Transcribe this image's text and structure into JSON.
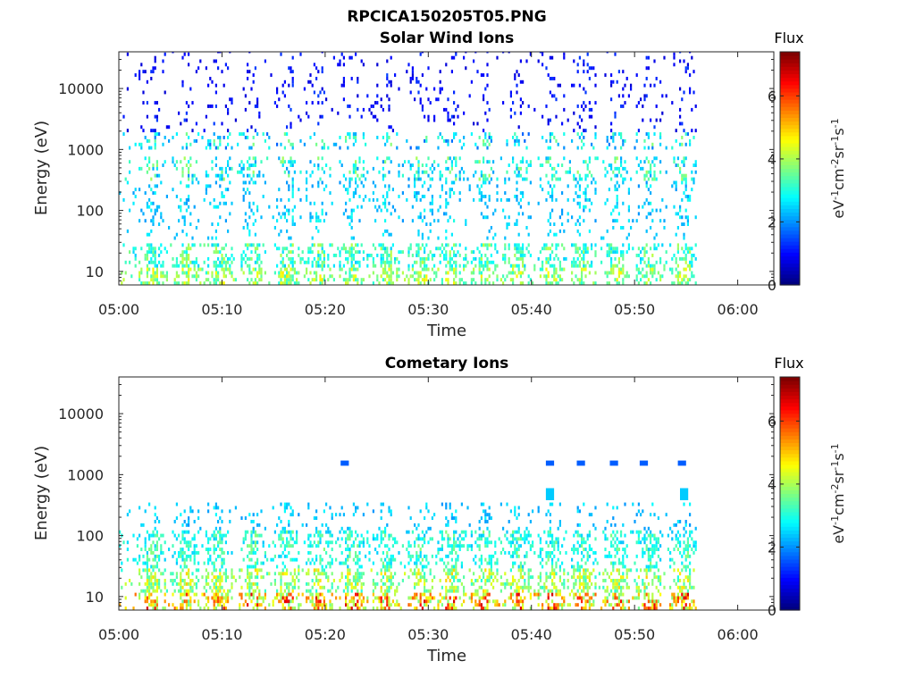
{
  "figure_title": "RPCICA150205T05.PNG",
  "chart_data": [
    {
      "type": "heatmap",
      "title": "Solar Wind Ions",
      "xlabel": "Time",
      "ylabel": "Energy (eV)",
      "x_ticks": [
        "05:00",
        "05:10",
        "05:20",
        "05:30",
        "05:40",
        "05:50",
        "06:00"
      ],
      "x_tick_minutes": [
        0,
        10,
        20,
        30,
        40,
        50,
        60
      ],
      "xlim_minutes": [
        0,
        63.5
      ],
      "data_extent_minutes": [
        0,
        56
      ],
      "y_scale": "log",
      "y_ticks": [
        "10",
        "100",
        "1000",
        "10000"
      ],
      "y_tick_values": [
        10,
        100,
        1000,
        10000
      ],
      "ylim": [
        6,
        40000
      ],
      "colorbar": {
        "title": "Flux",
        "label": "eV-1cm-2sr-1s-1",
        "label_display": [
          "eV",
          "-1",
          "cm",
          "-2",
          "sr",
          "-1",
          "s",
          "-1"
        ],
        "colormap": "jet",
        "range": [
          0,
          7.4
        ],
        "ticks": [
          "0",
          "2",
          "4",
          "6"
        ],
        "tick_values": [
          0,
          2,
          4,
          6
        ]
      },
      "burst_times_minutes": [
        3.1,
        6.4,
        9.6,
        12.9,
        16.2,
        19.4,
        22.5,
        25.8,
        29.2,
        32.1,
        35.4,
        38.6,
        41.8,
        45.0,
        48.2,
        51.3,
        54.7
      ],
      "bands": [
        {
          "emin": 6,
          "emax": 12,
          "level_min": 3.0,
          "level_max": 4.8,
          "density": 0.55
        },
        {
          "emin": 12,
          "emax": 30,
          "level_min": 2.4,
          "level_max": 4.2,
          "density": 0.5
        },
        {
          "emin": 35,
          "emax": 60,
          "level_min": 2.2,
          "level_max": 2.8,
          "density": 0.1
        },
        {
          "emin": 60,
          "emax": 300,
          "level_min": 2.0,
          "level_max": 3.0,
          "density": 0.22
        },
        {
          "emin": 300,
          "emax": 800,
          "level_min": 2.0,
          "level_max": 4.0,
          "density": 0.3
        },
        {
          "emin": 1000,
          "emax": 2000,
          "level_min": 1.6,
          "level_max": 3.8,
          "density": 0.25
        },
        {
          "emin": 2000,
          "emax": 40000,
          "level_min": 0.6,
          "level_max": 1.4,
          "density": 0.1
        }
      ]
    },
    {
      "type": "heatmap",
      "title": "Cometary Ions",
      "xlabel": "Time",
      "ylabel": "Energy (eV)",
      "x_ticks": [
        "05:00",
        "05:10",
        "05:20",
        "05:30",
        "05:40",
        "05:50",
        "06:00"
      ],
      "x_tick_minutes": [
        0,
        10,
        20,
        30,
        40,
        50,
        60
      ],
      "xlim_minutes": [
        0,
        63.5
      ],
      "data_extent_minutes": [
        0,
        56
      ],
      "y_scale": "log",
      "y_ticks": [
        "10",
        "100",
        "1000",
        "10000"
      ],
      "y_tick_values": [
        10,
        100,
        1000,
        10000
      ],
      "ylim": [
        6,
        40000
      ],
      "colorbar": {
        "title": "Flux",
        "label": "eV-1cm-2sr-1s-1",
        "label_display": [
          "eV",
          "-1",
          "cm",
          "-2",
          "sr",
          "-1",
          "s",
          "-1"
        ],
        "colormap": "jet",
        "range": [
          0,
          7.4
        ],
        "ticks": [
          "0",
          "2",
          "4",
          "6"
        ],
        "tick_values": [
          0,
          2,
          4,
          6
        ]
      },
      "burst_times_minutes": [
        3.1,
        6.4,
        9.6,
        12.9,
        16.2,
        19.4,
        22.5,
        25.8,
        29.2,
        32.1,
        35.4,
        38.6,
        41.8,
        45.0,
        48.2,
        51.3,
        54.7
      ],
      "bands": [
        {
          "emin": 6,
          "emax": 12,
          "level_min": 3.5,
          "level_max": 6.8,
          "density": 0.6
        },
        {
          "emin": 12,
          "emax": 30,
          "level_min": 3.0,
          "level_max": 5.0,
          "density": 0.55
        },
        {
          "emin": 30,
          "emax": 60,
          "level_min": 2.4,
          "level_max": 3.8,
          "density": 0.45
        },
        {
          "emin": 60,
          "emax": 130,
          "level_min": 2.3,
          "level_max": 3.8,
          "density": 0.5
        },
        {
          "emin": 130,
          "emax": 350,
          "level_min": 2.0,
          "level_max": 2.8,
          "density": 0.15
        }
      ],
      "patches": [
        {
          "t": 41.8,
          "emin": 380,
          "emax": 600,
          "level": 2.4
        },
        {
          "t": 54.8,
          "emin": 380,
          "emax": 600,
          "level": 2.4
        },
        {
          "t": 41.8,
          "emin": 1400,
          "emax": 1700,
          "level": 1.6
        },
        {
          "t": 44.8,
          "emin": 1400,
          "emax": 1700,
          "level": 1.6
        },
        {
          "t": 48.0,
          "emin": 1400,
          "emax": 1700,
          "level": 1.6
        },
        {
          "t": 50.9,
          "emin": 1400,
          "emax": 1700,
          "level": 1.6
        },
        {
          "t": 54.6,
          "emin": 1400,
          "emax": 1700,
          "level": 1.6
        },
        {
          "t": 21.9,
          "emin": 1400,
          "emax": 1700,
          "level": 1.6
        }
      ]
    }
  ]
}
